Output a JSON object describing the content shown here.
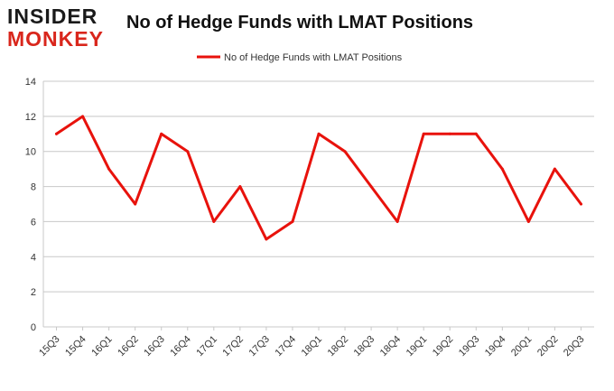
{
  "logo": {
    "line1": "INSIDER",
    "line2": "MONKEY"
  },
  "chart_data": {
    "type": "line",
    "title": "No of Hedge Funds with LMAT Positions",
    "categories": [
      "15Q3",
      "15Q4",
      "16Q1",
      "16Q2",
      "16Q3",
      "16Q4",
      "17Q1",
      "17Q2",
      "17Q3",
      "17Q4",
      "18Q1",
      "18Q2",
      "18Q3",
      "18Q4",
      "19Q1",
      "19Q2",
      "19Q3",
      "19Q4",
      "20Q1",
      "20Q2",
      "20Q3"
    ],
    "series": [
      {
        "name": "No of Hedge Funds with LMAT Positions",
        "color": "#e8120c",
        "values": [
          11,
          12,
          9,
          7,
          11,
          10,
          6,
          8,
          5,
          6,
          11,
          10,
          8,
          6,
          11,
          11,
          11,
          9,
          6,
          9,
          7
        ]
      }
    ],
    "ylim": [
      0,
      14
    ],
    "yticks": [
      0,
      2,
      4,
      6,
      8,
      10,
      12,
      14
    ],
    "grid": true,
    "legend_position": "top-center",
    "xlabel": "",
    "ylabel": ""
  }
}
